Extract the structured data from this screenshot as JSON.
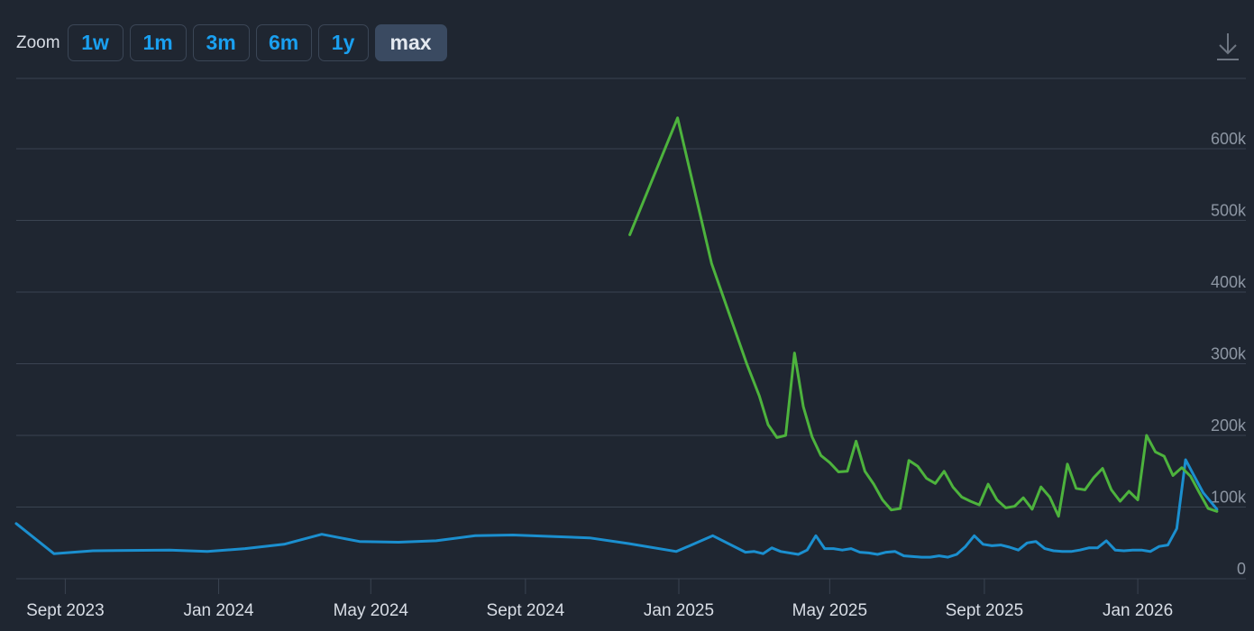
{
  "toolbar": {
    "zoom_label": "Zoom",
    "buttons": [
      "1w",
      "1m",
      "3m",
      "6m",
      "1y",
      "max"
    ],
    "active": "max"
  },
  "download_icon": "download-icon",
  "colors": {
    "background": "#1f2631",
    "grid": "#3a4351",
    "axis_text": "#8d96a3",
    "x_text": "#d8dde5",
    "green": "#4db33d",
    "blue": "#1b8fcf",
    "active_button": "#3a4a61",
    "button_text": "#1aa0f0"
  },
  "chart_data": {
    "type": "line",
    "xlim": [
      "2023-07-24",
      "2026-03-28"
    ],
    "ylim": [
      0,
      700000
    ],
    "grid": true,
    "y_ticks": [
      {
        "value": 0,
        "label": "0"
      },
      {
        "value": 100000,
        "label": "100k"
      },
      {
        "value": 200000,
        "label": "200k"
      },
      {
        "value": 300000,
        "label": "300k"
      },
      {
        "value": 400000,
        "label": "400k"
      },
      {
        "value": 500000,
        "label": "500k"
      },
      {
        "value": 600000,
        "label": "600k"
      }
    ],
    "x_ticks": [
      {
        "date": "2023-09-01",
        "label": "Sept 2023"
      },
      {
        "date": "2024-01-01",
        "label": "Jan 2024"
      },
      {
        "date": "2024-05-01",
        "label": "May 2024"
      },
      {
        "date": "2024-09-01",
        "label": "Sept 2024"
      },
      {
        "date": "2025-01-01",
        "label": "Jan 2025"
      },
      {
        "date": "2025-05-01",
        "label": "May 2025"
      },
      {
        "date": "2025-09-01",
        "label": "Sept 2025"
      },
      {
        "date": "2026-01-01",
        "label": "Jan 2026"
      }
    ],
    "series": [
      {
        "color": "#4db33d",
        "points": [
          [
            "2024-11-23",
            480000
          ],
          [
            "2024-12-31",
            643000
          ],
          [
            "2025-01-27",
            440000
          ],
          [
            "2025-02-24",
            300000
          ],
          [
            "2025-03-06",
            255000
          ],
          [
            "2025-03-13",
            215000
          ],
          [
            "2025-03-20",
            197000
          ],
          [
            "2025-03-27",
            200000
          ],
          [
            "2025-04-03",
            315000
          ],
          [
            "2025-04-10",
            240000
          ],
          [
            "2025-04-17",
            198000
          ],
          [
            "2025-04-24",
            172000
          ],
          [
            "2025-05-01",
            162000
          ],
          [
            "2025-05-08",
            149000
          ],
          [
            "2025-05-15",
            150000
          ],
          [
            "2025-05-22",
            192000
          ],
          [
            "2025-05-29",
            150000
          ],
          [
            "2025-06-05",
            132000
          ],
          [
            "2025-06-12",
            110000
          ],
          [
            "2025-06-19",
            96000
          ],
          [
            "2025-06-26",
            98000
          ],
          [
            "2025-07-03",
            165000
          ],
          [
            "2025-07-10",
            157000
          ],
          [
            "2025-07-17",
            140000
          ],
          [
            "2025-07-24",
            133000
          ],
          [
            "2025-07-31",
            150000
          ],
          [
            "2025-08-07",
            128000
          ],
          [
            "2025-08-14",
            114000
          ],
          [
            "2025-08-21",
            108000
          ],
          [
            "2025-08-28",
            103000
          ],
          [
            "2025-09-04",
            132000
          ],
          [
            "2025-09-11",
            110000
          ],
          [
            "2025-09-18",
            99000
          ],
          [
            "2025-09-25",
            101000
          ],
          [
            "2025-10-02",
            113000
          ],
          [
            "2025-10-09",
            97000
          ],
          [
            "2025-10-16",
            128000
          ],
          [
            "2025-10-23",
            114000
          ],
          [
            "2025-10-30",
            87000
          ],
          [
            "2025-11-06",
            160000
          ],
          [
            "2025-11-13",
            126000
          ],
          [
            "2025-11-20",
            124000
          ],
          [
            "2025-11-27",
            141000
          ],
          [
            "2025-12-04",
            154000
          ],
          [
            "2025-12-11",
            124000
          ],
          [
            "2025-12-18",
            108000
          ],
          [
            "2025-12-25",
            122000
          ],
          [
            "2026-01-01",
            110000
          ],
          [
            "2026-01-08",
            200000
          ],
          [
            "2026-01-15",
            177000
          ],
          [
            "2026-01-22",
            171000
          ],
          [
            "2026-01-29",
            144000
          ],
          [
            "2026-02-05",
            155000
          ],
          [
            "2026-02-12",
            143000
          ],
          [
            "2026-02-19",
            120000
          ],
          [
            "2026-02-26",
            98000
          ],
          [
            "2026-03-05",
            94000
          ]
        ]
      },
      {
        "color": "#1b8fcf",
        "points": [
          [
            "2023-07-24",
            77000
          ],
          [
            "2023-08-23",
            35000
          ],
          [
            "2023-09-23",
            39000
          ],
          [
            "2023-11-23",
            40000
          ],
          [
            "2023-12-23",
            38000
          ],
          [
            "2024-01-22",
            42000
          ],
          [
            "2024-02-22",
            48000
          ],
          [
            "2024-03-23",
            62000
          ],
          [
            "2024-04-22",
            52000
          ],
          [
            "2024-05-23",
            51000
          ],
          [
            "2024-06-22",
            53000
          ],
          [
            "2024-07-23",
            60000
          ],
          [
            "2024-08-22",
            61000
          ],
          [
            "2024-09-22",
            59000
          ],
          [
            "2024-10-22",
            57000
          ],
          [
            "2024-11-22",
            49000
          ],
          [
            "2024-12-30",
            38000
          ],
          [
            "2025-01-28",
            60000
          ],
          [
            "2025-02-23",
            37000
          ],
          [
            "2025-03-02",
            38000
          ],
          [
            "2025-03-09",
            35000
          ],
          [
            "2025-03-16",
            43000
          ],
          [
            "2025-03-23",
            38000
          ],
          [
            "2025-04-06",
            34000
          ],
          [
            "2025-04-13",
            40000
          ],
          [
            "2025-04-20",
            60000
          ],
          [
            "2025-04-27",
            42000
          ],
          [
            "2025-05-04",
            42000
          ],
          [
            "2025-05-11",
            40000
          ],
          [
            "2025-05-18",
            42000
          ],
          [
            "2025-05-25",
            37000
          ],
          [
            "2025-06-01",
            36000
          ],
          [
            "2025-06-08",
            34000
          ],
          [
            "2025-06-15",
            37000
          ],
          [
            "2025-06-22",
            38000
          ],
          [
            "2025-06-29",
            32000
          ],
          [
            "2025-07-06",
            31000
          ],
          [
            "2025-07-13",
            30000
          ],
          [
            "2025-07-20",
            30000
          ],
          [
            "2025-07-27",
            32000
          ],
          [
            "2025-08-03",
            30000
          ],
          [
            "2025-08-10",
            34000
          ],
          [
            "2025-08-17",
            45000
          ],
          [
            "2025-08-24",
            60000
          ],
          [
            "2025-08-31",
            48000
          ],
          [
            "2025-09-07",
            46000
          ],
          [
            "2025-09-14",
            47000
          ],
          [
            "2025-09-21",
            44000
          ],
          [
            "2025-09-28",
            40000
          ],
          [
            "2025-10-05",
            50000
          ],
          [
            "2025-10-12",
            52000
          ],
          [
            "2025-10-19",
            42000
          ],
          [
            "2025-10-26",
            39000
          ],
          [
            "2025-11-02",
            38000
          ],
          [
            "2025-11-09",
            38000
          ],
          [
            "2025-11-16",
            40000
          ],
          [
            "2025-11-23",
            43000
          ],
          [
            "2025-11-30",
            43000
          ],
          [
            "2025-12-07",
            53000
          ],
          [
            "2025-12-14",
            40000
          ],
          [
            "2025-12-21",
            39000
          ],
          [
            "2025-12-28",
            40000
          ],
          [
            "2026-01-04",
            40000
          ],
          [
            "2026-01-11",
            38000
          ],
          [
            "2026-01-18",
            45000
          ],
          [
            "2026-01-25",
            47000
          ],
          [
            "2026-02-01",
            70000
          ],
          [
            "2026-02-08",
            166000
          ],
          [
            "2026-02-15",
            143000
          ],
          [
            "2026-02-22",
            120000
          ],
          [
            "2026-03-05",
            97000
          ]
        ]
      }
    ]
  }
}
